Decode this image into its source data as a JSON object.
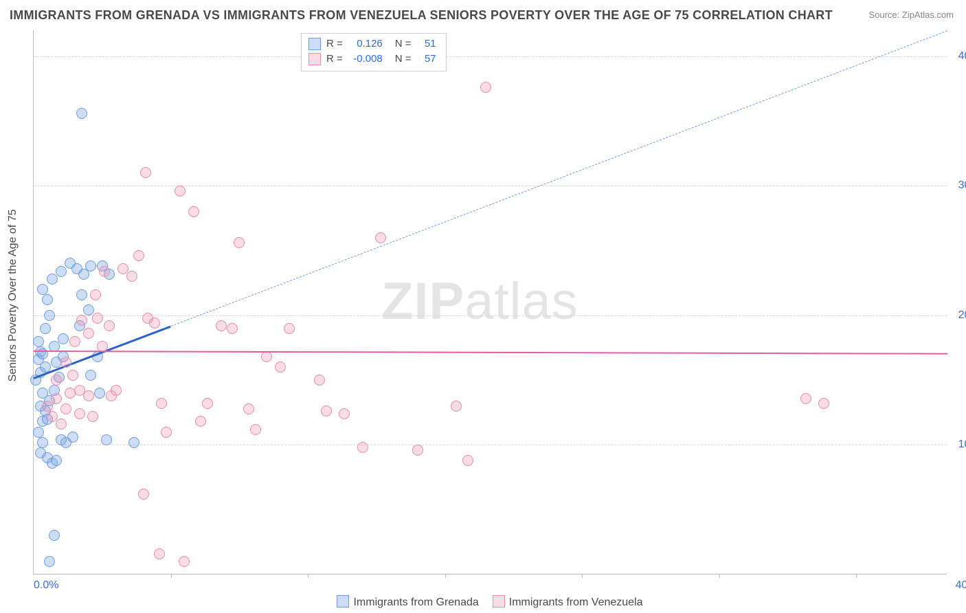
{
  "title": "IMMIGRANTS FROM GRENADA VS IMMIGRANTS FROM VENEZUELA SENIORS POVERTY OVER THE AGE OF 75 CORRELATION CHART",
  "source_label": "Source: ",
  "source_name": "ZipAtlas.com",
  "y_axis_label": "Seniors Poverty Over the Age of 75",
  "watermark_bold": "ZIP",
  "watermark_thin": "atlas",
  "chart": {
    "type": "scatter-correlation",
    "xlim": [
      0,
      40
    ],
    "ylim": [
      0,
      42
    ],
    "y_ticks": [
      10,
      20,
      30,
      40
    ],
    "y_tick_labels": [
      "10.0%",
      "20.0%",
      "30.0%",
      "40.0%"
    ],
    "x_min_label": "0.0%",
    "x_max_label": "40.0%",
    "x_tick_positions": [
      6,
      12,
      18,
      24,
      30,
      36
    ],
    "background_color": "#ffffff",
    "grid_color": "#d8d8d8",
    "axis_color": "#bdbdbd",
    "tick_label_color": "#3b6fd6",
    "point_radius": 8,
    "series": [
      {
        "id": "grenada",
        "label": "Immigrants from Grenada",
        "fill": "rgba(120,165,225,0.38)",
        "stroke": "#6f9fe0",
        "R_label": "R =",
        "R": "0.126",
        "N_label": "N =",
        "N": "51",
        "trend": {
          "solid": {
            "x1": 0,
            "y1": 15.2,
            "x2": 6,
            "y2": 19.2,
            "width": 3,
            "color": "#2f63c8"
          },
          "dash": {
            "x1": 6,
            "y1": 19.2,
            "x2": 40,
            "y2": 42,
            "width": 1.4,
            "color": "#6f9fe0",
            "dash": "7,6"
          }
        },
        "points": [
          [
            0.1,
            15.0
          ],
          [
            0.2,
            16.6
          ],
          [
            0.3,
            17.2
          ],
          [
            0.2,
            18.0
          ],
          [
            0.4,
            17.0
          ],
          [
            0.3,
            15.6
          ],
          [
            0.5,
            16.0
          ],
          [
            0.4,
            14.0
          ],
          [
            0.3,
            13.0
          ],
          [
            0.5,
            12.6
          ],
          [
            0.4,
            11.8
          ],
          [
            0.6,
            12.0
          ],
          [
            0.2,
            11.0
          ],
          [
            0.4,
            10.2
          ],
          [
            0.3,
            9.4
          ],
          [
            0.6,
            9.0
          ],
          [
            0.8,
            8.6
          ],
          [
            1.0,
            8.8
          ],
          [
            1.2,
            10.4
          ],
          [
            1.4,
            10.2
          ],
          [
            1.7,
            10.6
          ],
          [
            0.7,
            13.4
          ],
          [
            0.9,
            14.2
          ],
          [
            1.1,
            15.2
          ],
          [
            1.0,
            16.4
          ],
          [
            1.3,
            16.8
          ],
          [
            0.9,
            17.6
          ],
          [
            1.3,
            18.2
          ],
          [
            0.5,
            19.0
          ],
          [
            0.7,
            20.0
          ],
          [
            0.6,
            21.2
          ],
          [
            0.4,
            22.0
          ],
          [
            0.8,
            22.8
          ],
          [
            1.2,
            23.4
          ],
          [
            1.6,
            24.0
          ],
          [
            1.9,
            23.6
          ],
          [
            2.2,
            23.2
          ],
          [
            2.5,
            23.8
          ],
          [
            2.1,
            21.6
          ],
          [
            2.4,
            20.4
          ],
          [
            2.0,
            19.2
          ],
          [
            3.0,
            23.8
          ],
          [
            3.3,
            23.2
          ],
          [
            3.2,
            10.4
          ],
          [
            4.4,
            10.2
          ],
          [
            2.1,
            35.6
          ],
          [
            0.9,
            3.0
          ],
          [
            0.7,
            1.0
          ],
          [
            2.8,
            16.8
          ],
          [
            2.5,
            15.4
          ],
          [
            2.9,
            14.0
          ]
        ]
      },
      {
        "id": "venezuela",
        "label": "Immigrants from Venezuela",
        "fill": "rgba(235,140,170,0.30)",
        "stroke": "#e88fb0",
        "R_label": "R =",
        "R": "-0.008",
        "N_label": "N =",
        "N": "57",
        "trend": {
          "solid": {
            "x1": 0,
            "y1": 17.3,
            "x2": 40,
            "y2": 17.1,
            "width": 2.5,
            "color": "#e75ea0"
          }
        },
        "points": [
          [
            0.6,
            13.0
          ],
          [
            0.8,
            12.2
          ],
          [
            1.0,
            13.6
          ],
          [
            1.2,
            11.6
          ],
          [
            1.4,
            12.8
          ],
          [
            1.6,
            14.0
          ],
          [
            1.0,
            15.0
          ],
          [
            1.4,
            16.4
          ],
          [
            1.7,
            15.4
          ],
          [
            2.0,
            14.2
          ],
          [
            2.4,
            13.8
          ],
          [
            2.0,
            12.4
          ],
          [
            2.6,
            12.2
          ],
          [
            1.8,
            18.0
          ],
          [
            2.1,
            19.6
          ],
          [
            2.4,
            18.6
          ],
          [
            2.8,
            19.8
          ],
          [
            3.0,
            17.6
          ],
          [
            3.4,
            13.8
          ],
          [
            3.3,
            19.2
          ],
          [
            3.6,
            14.2
          ],
          [
            3.9,
            23.6
          ],
          [
            4.3,
            23.0
          ],
          [
            4.6,
            24.6
          ],
          [
            5.0,
            19.8
          ],
          [
            5.3,
            19.4
          ],
          [
            5.6,
            13.2
          ],
          [
            5.8,
            11.0
          ],
          [
            4.9,
            31.0
          ],
          [
            6.4,
            29.6
          ],
          [
            7.0,
            28.0
          ],
          [
            7.3,
            11.8
          ],
          [
            7.6,
            13.2
          ],
          [
            8.2,
            19.2
          ],
          [
            8.7,
            19.0
          ],
          [
            9.0,
            25.6
          ],
          [
            9.4,
            12.8
          ],
          [
            9.7,
            11.2
          ],
          [
            10.2,
            16.8
          ],
          [
            10.8,
            16.0
          ],
          [
            11.2,
            19.0
          ],
          [
            12.5,
            15.0
          ],
          [
            12.8,
            12.6
          ],
          [
            13.6,
            12.4
          ],
          [
            14.4,
            9.8
          ],
          [
            15.2,
            26.0
          ],
          [
            16.8,
            9.6
          ],
          [
            18.5,
            13.0
          ],
          [
            19.0,
            8.8
          ],
          [
            19.8,
            37.6
          ],
          [
            33.8,
            13.6
          ],
          [
            34.6,
            13.2
          ],
          [
            4.8,
            6.2
          ],
          [
            5.5,
            1.6
          ],
          [
            6.6,
            1.0
          ],
          [
            3.1,
            23.4
          ],
          [
            2.7,
            21.6
          ]
        ]
      }
    ]
  }
}
